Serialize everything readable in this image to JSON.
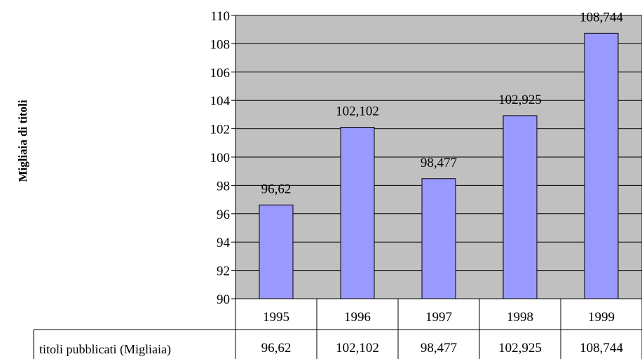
{
  "chart_data": {
    "type": "bar",
    "ylabel": "Migliaia di titoli",
    "categories": [
      "1995",
      "1996",
      "1997",
      "1998",
      "1999"
    ],
    "series": [
      {
        "name": "titoli pubblicati (Migliaia)",
        "values": [
          96.62,
          102.102,
          98.477,
          102.925,
          108.744
        ],
        "labels": [
          "96,62",
          "102,102",
          "98,477",
          "102,925",
          "108,744"
        ]
      }
    ],
    "ylim": [
      90,
      110
    ],
    "yticks": [
      90,
      92,
      94,
      96,
      98,
      100,
      102,
      104,
      106,
      108,
      110
    ],
    "grid": true,
    "data_table": true,
    "colors": {
      "plot_bg": "#c0c0c0",
      "bar_fill": "#9999ff",
      "bar_stroke": "#000000"
    }
  }
}
